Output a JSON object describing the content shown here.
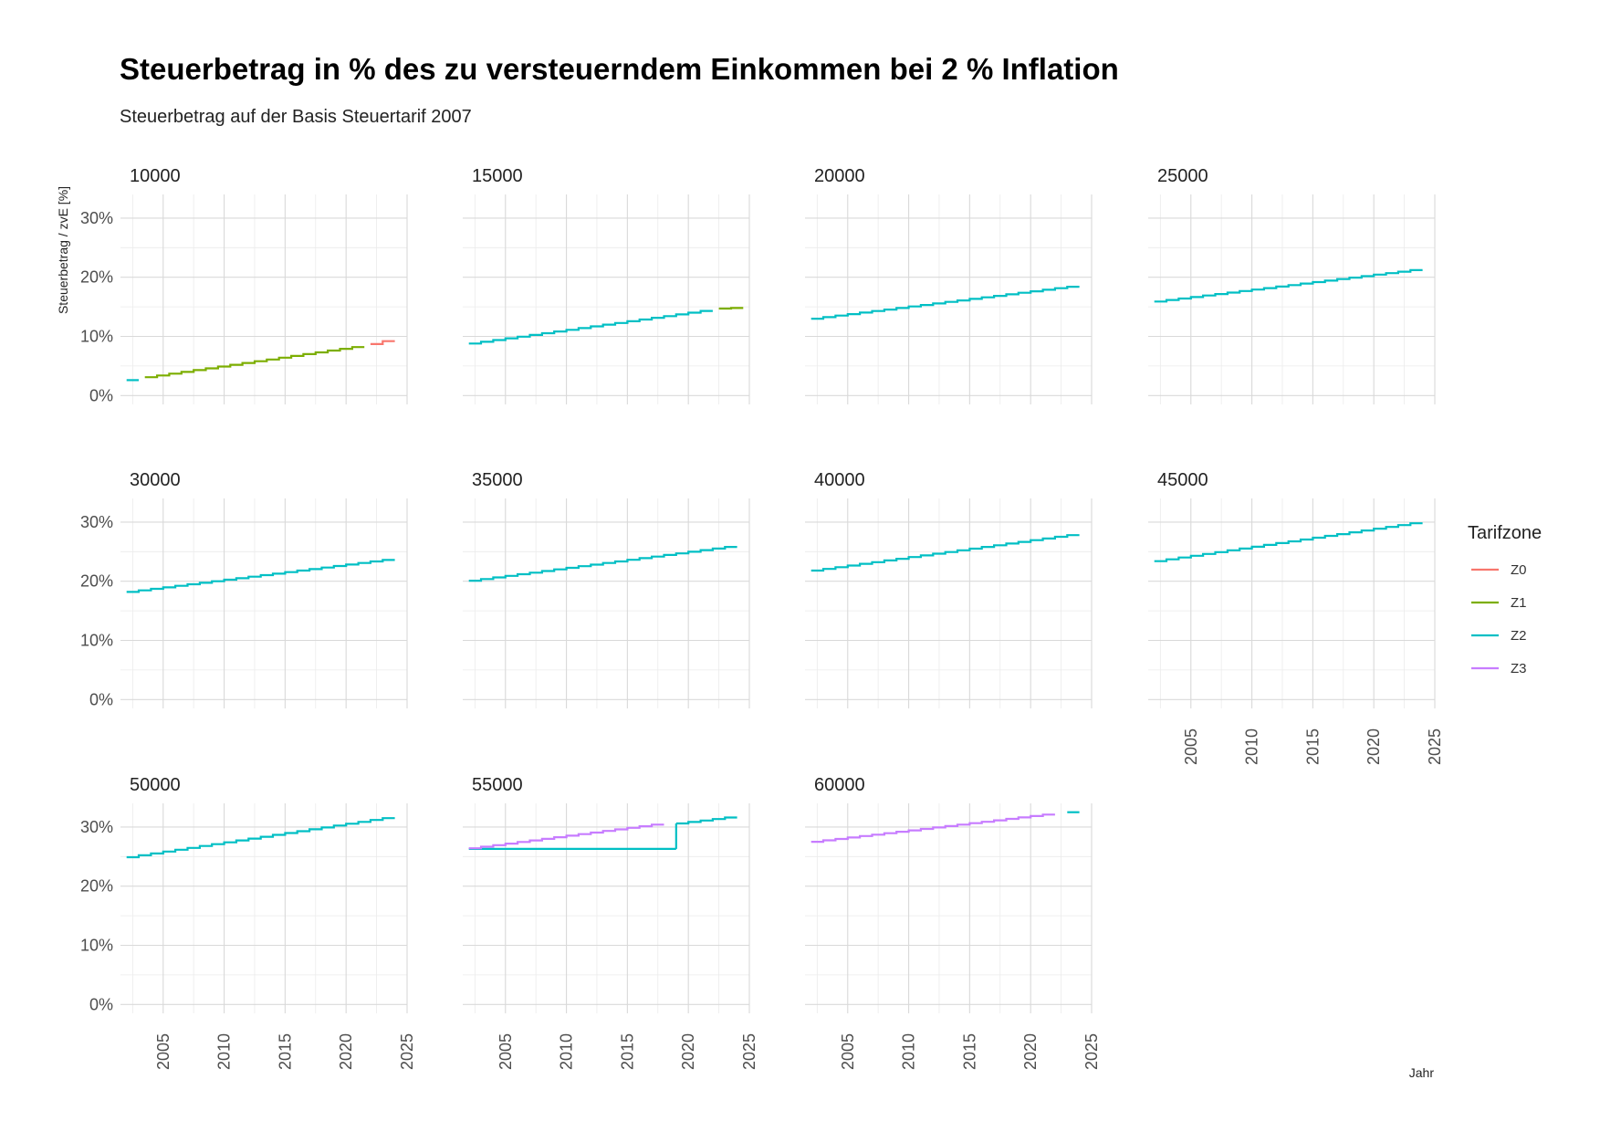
{
  "chart_data": {
    "type": "line",
    "title": "Steuerbetrag in % des zu versteuerndem Einkommen bei 2 % Inflation",
    "subtitle": "Steuerbetrag auf der Basis Steuertarif 2007",
    "xlabel": "Jahr",
    "ylabel": "Steuerbetrag / zvE [%]",
    "x_ticks": [
      "2005",
      "2010",
      "2015",
      "2020",
      "2025"
    ],
    "x_tick_values": [
      2005,
      2010,
      2015,
      2020,
      2025
    ],
    "y_ticks": [
      "0%",
      "10%",
      "20%",
      "30%"
    ],
    "y_tick_values": [
      0,
      10,
      20,
      30
    ],
    "xlim": [
      2001.5,
      2025
    ],
    "ylim": [
      -1.5,
      34
    ],
    "legend": {
      "title": "Tarifzone",
      "items": [
        {
          "label": "Z0",
          "color": "#F8766D"
        },
        {
          "label": "Z1",
          "color": "#7CAE00"
        },
        {
          "label": "Z2",
          "color": "#00BFC4"
        },
        {
          "label": "Z3",
          "color": "#C77CFF"
        }
      ]
    },
    "panels": [
      {
        "label": "10000",
        "segments": [
          {
            "zone": "Z2",
            "x": [
              2002,
              2003
            ],
            "y": [
              2.6,
              2.6
            ]
          },
          {
            "zone": "Z1",
            "x": [
              2003.5,
              2021
            ],
            "y": [
              3.1,
              8.2
            ]
          },
          {
            "zone": "Z0",
            "x": [
              2022,
              2024
            ],
            "y": [
              8.7,
              9.2
            ]
          }
        ]
      },
      {
        "label": "15000",
        "segments": [
          {
            "zone": "Z2",
            "x": [
              2002,
              2022
            ],
            "y": [
              8.8,
              14.3
            ]
          },
          {
            "zone": "Z1",
            "x": [
              2022.5,
              2024
            ],
            "y": [
              14.7,
              14.8
            ]
          }
        ]
      },
      {
        "label": "20000",
        "segments": [
          {
            "zone": "Z2",
            "x": [
              2002,
              2024
            ],
            "y": [
              13.0,
              18.4
            ]
          }
        ]
      },
      {
        "label": "25000",
        "segments": [
          {
            "zone": "Z2",
            "x": [
              2002,
              2024
            ],
            "y": [
              15.9,
              21.2
            ]
          }
        ]
      },
      {
        "label": "30000",
        "segments": [
          {
            "zone": "Z2",
            "x": [
              2002,
              2024
            ],
            "y": [
              18.2,
              23.6
            ]
          }
        ]
      },
      {
        "label": "35000",
        "segments": [
          {
            "zone": "Z2",
            "x": [
              2002,
              2024
            ],
            "y": [
              20.1,
              25.8
            ]
          }
        ]
      },
      {
        "label": "40000",
        "segments": [
          {
            "zone": "Z2",
            "x": [
              2002,
              2024
            ],
            "y": [
              21.8,
              27.8
            ]
          }
        ]
      },
      {
        "label": "45000",
        "segments": [
          {
            "zone": "Z2",
            "x": [
              2002,
              2024
            ],
            "y": [
              23.4,
              29.8
            ]
          }
        ]
      },
      {
        "label": "50000",
        "segments": [
          {
            "zone": "Z2",
            "x": [
              2002,
              2024
            ],
            "y": [
              24.9,
              31.5
            ]
          }
        ]
      },
      {
        "label": "55000",
        "segments": [
          {
            "zone": "Z2",
            "x": [
              2002,
              2019
            ],
            "y": [
              26.3,
              26.3
            ]
          },
          {
            "zone": "Z2",
            "x": [
              2019,
              2024
            ],
            "y": [
              30.6,
              31.6
            ]
          },
          {
            "zone": "Z3",
            "x": [
              2002,
              2018
            ],
            "y": [
              26.4,
              30.4
            ]
          }
        ]
      },
      {
        "label": "60000",
        "segments": [
          {
            "zone": "Z3",
            "x": [
              2002,
              2022
            ],
            "y": [
              27.5,
              32.1
            ]
          },
          {
            "zone": "Z2",
            "x": [
              2023,
              2024
            ],
            "y": [
              32.5,
              32.5
            ]
          }
        ]
      }
    ]
  }
}
